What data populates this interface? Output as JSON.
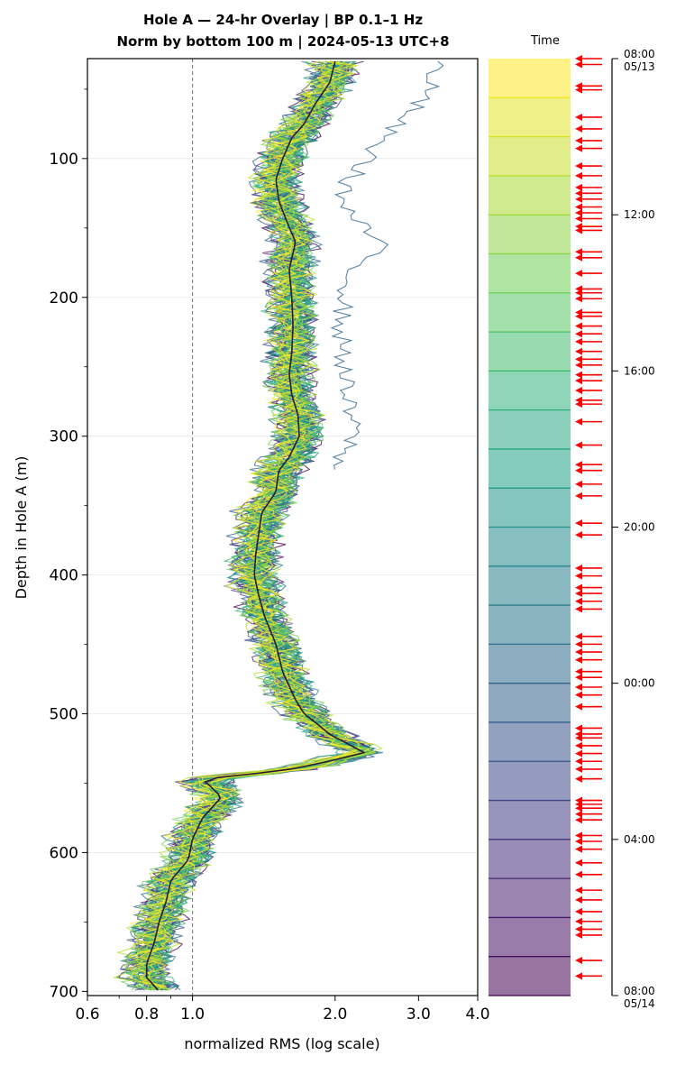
{
  "title_line1": "Hole A — 24-hr Overlay  |  BP 0.1–1 Hz",
  "title_line2": "Norm by bottom 100 m  |  2024-05-13 UTC+8",
  "timebar_title": "Time",
  "colors": {
    "reference_line": "#777777",
    "arrows": "#ff0000",
    "dark_trace": "#2b1a3a",
    "colormap": [
      "#440154",
      "#482878",
      "#3e4989",
      "#31688e",
      "#26828e",
      "#1f9e89",
      "#35b779",
      "#6ece58",
      "#b5de2b",
      "#fde725"
    ]
  },
  "chart_data": {
    "type": "line",
    "xlabel": "normalized RMS  (log scale)",
    "ylabel": "Depth in Hole A (m)",
    "xscale": "log",
    "xlim": [
      0.6,
      4.0
    ],
    "ylim": [
      703,
      28
    ],
    "y_inverted": true,
    "x_ticks": [
      0.6,
      0.8,
      1.0,
      2.0,
      3.0,
      4.0
    ],
    "x_tick_labels": [
      "0.6",
      "0.8",
      "1.0",
      "2.0",
      "3.0",
      "4.0"
    ],
    "y_ticks": [
      100,
      200,
      300,
      400,
      500,
      600,
      700
    ],
    "y_tick_labels": [
      "100",
      "200",
      "300",
      "400",
      "500",
      "600",
      "700"
    ],
    "reference_x": 1.0,
    "grid": "horizontal",
    "depth_nodes": [
      30,
      45,
      60,
      75,
      85,
      100,
      115,
      130,
      145,
      160,
      180,
      200,
      220,
      240,
      255,
      270,
      285,
      300,
      315,
      325,
      340,
      355,
      370,
      385,
      400,
      415,
      430,
      450,
      470,
      490,
      500,
      515,
      528,
      540,
      547,
      560,
      575,
      590,
      605,
      620,
      635,
      650,
      665,
      680,
      690,
      700
    ],
    "median_profile": [
      2.0,
      1.95,
      1.82,
      1.72,
      1.62,
      1.55,
      1.5,
      1.52,
      1.58,
      1.65,
      1.6,
      1.62,
      1.63,
      1.62,
      1.6,
      1.62,
      1.67,
      1.68,
      1.6,
      1.52,
      1.5,
      1.4,
      1.38,
      1.36,
      1.35,
      1.38,
      1.42,
      1.5,
      1.55,
      1.65,
      1.72,
      1.95,
      2.3,
      1.6,
      1.05,
      1.15,
      1.05,
      1.0,
      0.98,
      0.9,
      0.88,
      0.85,
      0.83,
      0.8,
      0.8,
      0.85
    ],
    "outlier_profile": [
      3.3,
      3.2,
      3.0,
      2.7,
      2.5,
      2.35,
      2.15,
      2.05,
      2.2,
      2.5,
      2.2,
      2.1,
      2.05,
      2.08,
      2.1,
      2.1,
      2.15,
      2.2,
      2.05,
      1.95
    ],
    "series_count": 48,
    "median_label": "",
    "time_bar": {
      "start": "08:00",
      "start_date": "05/13",
      "end": "08:00",
      "end_date": "05/14",
      "tick_labels": [
        "12:00",
        "16:00",
        "20:00",
        "00:00",
        "04:00"
      ],
      "tick_hours": [
        4,
        8,
        12,
        16,
        20
      ],
      "span_hours": 24,
      "bins": 24,
      "arrow_hours": [
        0.0,
        0.15,
        0.7,
        0.8,
        1.5,
        1.8,
        2.1,
        2.3,
        2.75,
        3.0,
        3.3,
        3.45,
        3.6,
        3.8,
        3.95,
        4.1,
        4.3,
        4.4,
        4.95,
        5.1,
        5.5,
        5.9,
        6.0,
        6.15,
        6.5,
        6.6,
        6.85,
        7.05,
        7.25,
        7.5,
        7.7,
        7.85,
        8.1,
        8.25,
        8.5,
        8.75,
        8.85,
        9.3,
        9.9,
        10.4,
        10.55,
        10.9,
        11.2,
        11.9,
        12.2,
        13.05,
        13.25,
        13.55,
        13.7,
        13.9,
        14.1,
        14.8,
        15.0,
        15.2,
        15.4,
        15.7,
        15.85,
        16.1,
        16.3,
        16.6,
        17.15,
        17.3,
        17.4,
        17.6,
        17.8,
        18.0,
        18.2,
        18.45,
        19.0,
        19.1,
        19.2,
        19.35,
        19.5,
        19.9,
        20.05,
        20.25,
        20.6,
        20.9,
        21.3,
        21.55,
        21.85,
        22.1,
        22.3,
        22.45,
        23.1,
        23.5
      ]
    }
  }
}
